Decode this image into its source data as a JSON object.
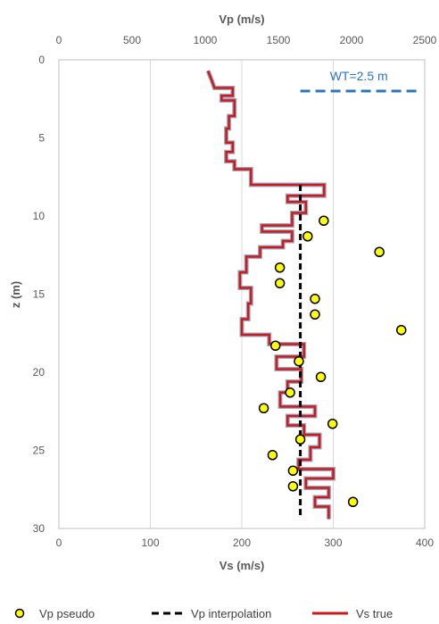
{
  "chart_data": {
    "type": "scatter",
    "top_axis": {
      "label": "Vp (m/s)",
      "range": [
        0,
        2500
      ],
      "ticks": [
        "0",
        "500",
        "1000",
        "1500",
        "2000",
        "2500"
      ]
    },
    "bottom_axis": {
      "label": "Vs (m/s)",
      "range": [
        0,
        400
      ],
      "ticks": [
        "0",
        "100",
        "200",
        "300",
        "400"
      ]
    },
    "y_axis": {
      "label": "z (m)",
      "range": [
        0,
        30
      ],
      "inverted": true,
      "ticks": [
        "0",
        "5",
        "10",
        "15",
        "20",
        "25",
        "30"
      ]
    },
    "grid": "vertical",
    "legend_position": "bottom",
    "annotation": {
      "label": "WT=2.5 m",
      "depth": 2,
      "vp_range": [
        1650,
        2450
      ],
      "color": "#2e75b6"
    },
    "series": [
      {
        "name": "Vp pseudo",
        "kind": "scatter",
        "axis": "top",
        "color": "#ffff00",
        "points": [
          [
            1810,
            10.3
          ],
          [
            1700,
            11.3
          ],
          [
            2190,
            12.3
          ],
          [
            1510,
            13.3
          ],
          [
            1510,
            14.3
          ],
          [
            1750,
            15.3
          ],
          [
            1750,
            16.3
          ],
          [
            2340,
            17.3
          ],
          [
            1480,
            18.3
          ],
          [
            1640,
            19.3
          ],
          [
            1790,
            20.3
          ],
          [
            1580,
            21.3
          ],
          [
            1400,
            22.3
          ],
          [
            1870,
            23.3
          ],
          [
            1650,
            24.3
          ],
          [
            1460,
            25.3
          ],
          [
            1600,
            26.3
          ],
          [
            1600,
            27.3
          ],
          [
            2010,
            28.3
          ]
        ]
      },
      {
        "name": "Vp interpolation",
        "kind": "line",
        "axis": "top",
        "color": "#000000",
        "points": [
          [
            1650,
            8.0
          ],
          [
            1650,
            29.3
          ]
        ]
      },
      {
        "name": "Vs true",
        "kind": "line",
        "axis": "bottom",
        "color": "#cc1a1a",
        "points": [
          [
            163,
            0.7
          ],
          [
            167,
            1.3
          ],
          [
            170,
            1.8
          ],
          [
            190,
            1.8
          ],
          [
            190,
            2.3
          ],
          [
            178,
            2.3
          ],
          [
            178,
            2.6
          ],
          [
            192,
            2.6
          ],
          [
            192,
            3.6
          ],
          [
            186,
            3.6
          ],
          [
            186,
            4.4
          ],
          [
            183,
            4.4
          ],
          [
            183,
            5.3
          ],
          [
            190,
            5.3
          ],
          [
            190,
            5.9
          ],
          [
            183,
            5.9
          ],
          [
            183,
            6.5
          ],
          [
            192,
            6.5
          ],
          [
            192,
            7.0
          ],
          [
            210,
            7.0
          ],
          [
            210,
            8.0
          ],
          [
            290,
            8.0
          ],
          [
            290,
            8.7
          ],
          [
            250,
            8.7
          ],
          [
            250,
            9.1
          ],
          [
            270,
            9.1
          ],
          [
            270,
            9.8
          ],
          [
            255,
            9.8
          ],
          [
            255,
            10.6
          ],
          [
            222,
            10.6
          ],
          [
            222,
            11.0
          ],
          [
            255,
            11.0
          ],
          [
            255,
            11.6
          ],
          [
            245,
            11.6
          ],
          [
            245,
            12.0
          ],
          [
            220,
            12.0
          ],
          [
            220,
            12.6
          ],
          [
            205,
            12.6
          ],
          [
            205,
            13.6
          ],
          [
            198,
            13.6
          ],
          [
            198,
            14.6
          ],
          [
            210,
            14.6
          ],
          [
            210,
            15.6
          ],
          [
            207,
            15.6
          ],
          [
            207,
            16.6
          ],
          [
            200,
            16.6
          ],
          [
            200,
            17.6
          ],
          [
            230,
            17.6
          ],
          [
            230,
            18.2
          ],
          [
            268,
            18.2
          ],
          [
            268,
            19.0
          ],
          [
            238,
            19.0
          ],
          [
            238,
            19.8
          ],
          [
            265,
            19.8
          ],
          [
            265,
            20.6
          ],
          [
            250,
            20.6
          ],
          [
            250,
            21.3
          ],
          [
            242,
            21.3
          ],
          [
            242,
            22.2
          ],
          [
            280,
            22.2
          ],
          [
            280,
            22.8
          ],
          [
            250,
            22.8
          ],
          [
            250,
            23.4
          ],
          [
            268,
            23.4
          ],
          [
            268,
            24.0
          ],
          [
            285,
            24.0
          ],
          [
            285,
            24.8
          ],
          [
            275,
            24.8
          ],
          [
            275,
            25.6
          ],
          [
            262,
            25.6
          ],
          [
            262,
            26.2
          ],
          [
            300,
            26.2
          ],
          [
            300,
            26.8
          ],
          [
            270,
            26.8
          ],
          [
            270,
            27.4
          ],
          [
            295,
            27.4
          ],
          [
            295,
            28.0
          ],
          [
            280,
            28.0
          ],
          [
            280,
            28.6
          ],
          [
            295,
            28.6
          ],
          [
            295,
            29.4
          ]
        ]
      }
    ]
  }
}
